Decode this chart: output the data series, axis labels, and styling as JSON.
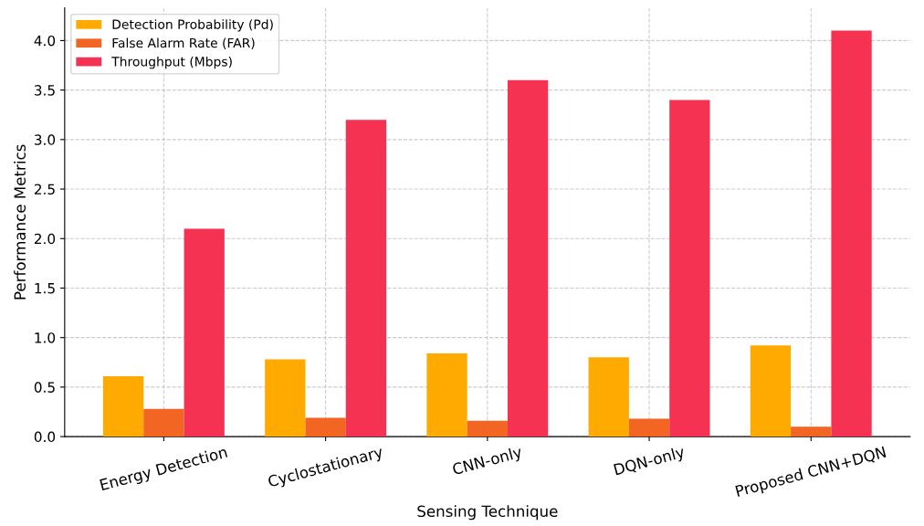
{
  "chart_data": {
    "type": "bar",
    "xlabel": "Sensing Technique",
    "ylabel": "Performance Metrics",
    "categories": [
      "Energy Detection",
      "Cyclostationary",
      "CNN-only",
      "DQN-only",
      "Proposed CNN+DQN"
    ],
    "series": [
      {
        "name": "Detection Probability (Pd)",
        "color": "#ffaa00",
        "values": [
          0.61,
          0.78,
          0.84,
          0.8,
          0.92
        ]
      },
      {
        "name": "False Alarm Rate (FAR)",
        "color": "#f26522",
        "values": [
          0.28,
          0.19,
          0.16,
          0.18,
          0.1
        ]
      },
      {
        "name": "Throughput (Mbps)",
        "color": "#f53252",
        "values": [
          2.1,
          3.2,
          3.6,
          3.4,
          4.1
        ]
      }
    ],
    "ylim": [
      0,
      4.33
    ],
    "yticks": [
      {
        "value": 0,
        "label": "0.0"
      },
      {
        "value": 0.5,
        "label": "0.5"
      },
      {
        "value": 1,
        "label": "1.0"
      },
      {
        "value": 1.5,
        "label": "1.5"
      },
      {
        "value": 2,
        "label": "2.0"
      },
      {
        "value": 2.5,
        "label": "2.5"
      },
      {
        "value": 3,
        "label": "3.0"
      },
      {
        "value": 3.5,
        "label": "3.5"
      },
      {
        "value": 4,
        "label": "4.0"
      }
    ],
    "grid": true,
    "legend": "top left"
  }
}
